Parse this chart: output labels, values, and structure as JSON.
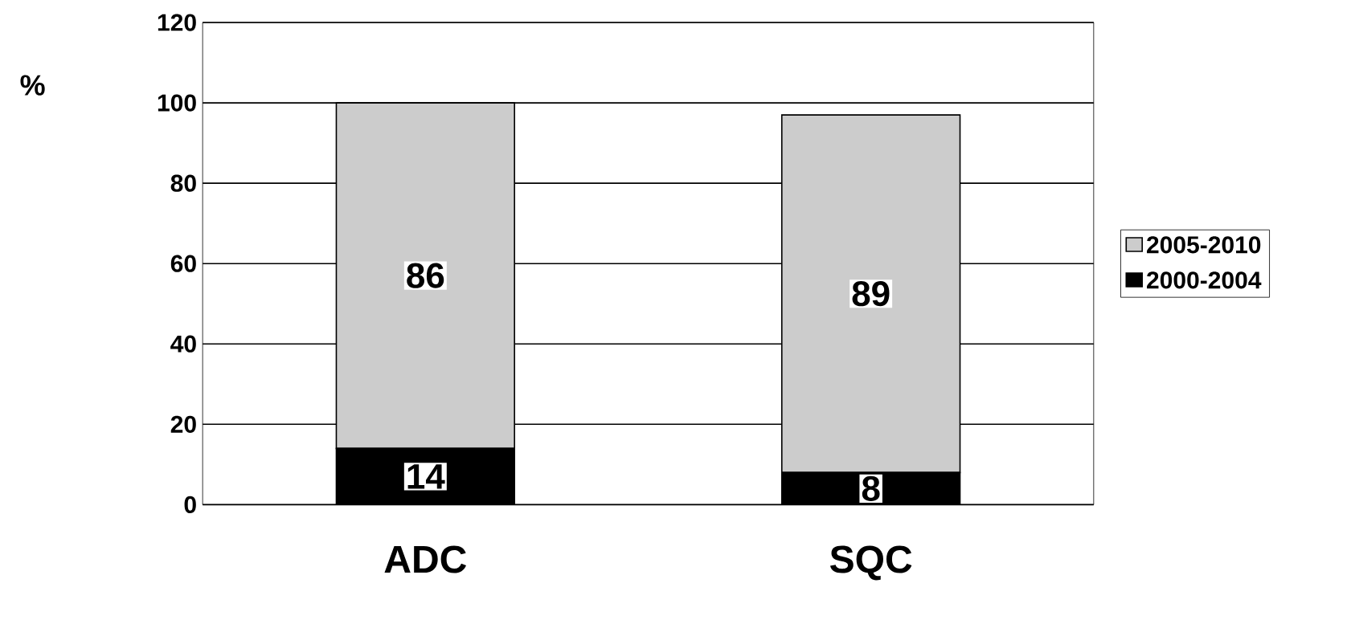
{
  "chart_data": {
    "type": "bar",
    "stacked": true,
    "ylabel": "%",
    "categories": [
      "ADC",
      "SQC"
    ],
    "series": [
      {
        "name": "2000-2004",
        "color": "#000000",
        "values": [
          14,
          8
        ]
      },
      {
        "name": "2005-2010",
        "color": "#cccccc",
        "values": [
          86,
          89
        ]
      }
    ],
    "ylim": [
      0,
      120
    ],
    "yticks": [
      0,
      20,
      40,
      60,
      80,
      100,
      120
    ],
    "grid": "y",
    "legend": "right",
    "data_labels": true
  }
}
